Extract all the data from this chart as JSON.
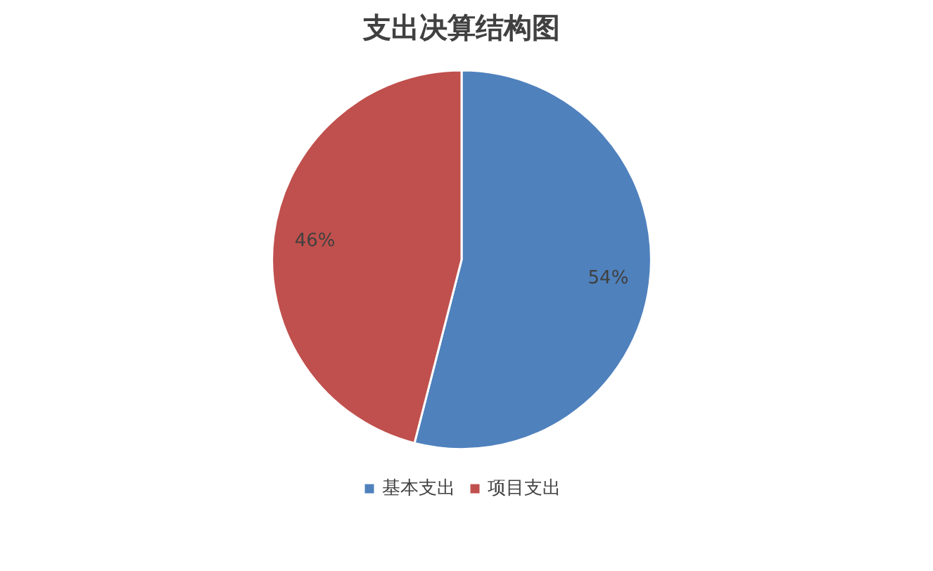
{
  "chart_data": {
    "type": "pie",
    "title": "支出决算结构图",
    "categories": [
      "基本支出",
      "项目支出"
    ],
    "values": [
      54,
      46
    ],
    "colors": [
      "#4f81bd",
      "#c0504d"
    ],
    "value_labels": [
      "54%",
      "46%"
    ],
    "legend": "bottom"
  }
}
